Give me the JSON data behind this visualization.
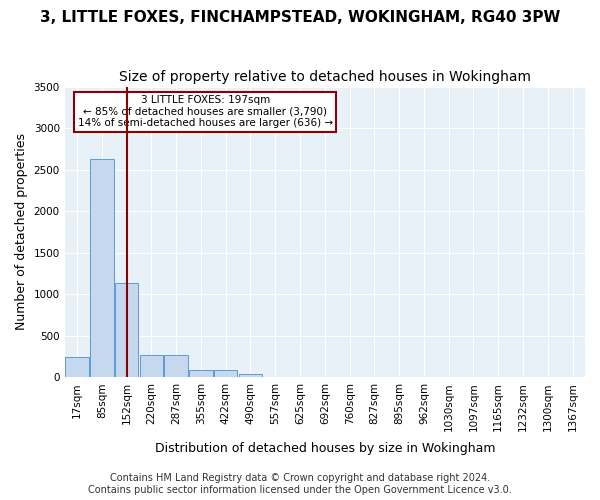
{
  "title": "3, LITTLE FOXES, FINCHAMPSTEAD, WOKINGHAM, RG40 3PW",
  "subtitle": "Size of property relative to detached houses in Wokingham",
  "xlabel": "Distribution of detached houses by size in Wokingham",
  "ylabel": "Number of detached properties",
  "footer_line1": "Contains HM Land Registry data © Crown copyright and database right 2024.",
  "footer_line2": "Contains public sector information licensed under the Open Government Licence v3.0.",
  "bin_labels": [
    "17sqm",
    "85sqm",
    "152sqm",
    "220sqm",
    "287sqm",
    "355sqm",
    "422sqm",
    "490sqm",
    "557sqm",
    "625sqm",
    "692sqm",
    "760sqm",
    "827sqm",
    "895sqm",
    "962sqm",
    "1030sqm",
    "1097sqm",
    "1165sqm",
    "1232sqm",
    "1300sqm",
    "1367sqm"
  ],
  "bar_heights": [
    250,
    2630,
    1140,
    265,
    265,
    90,
    90,
    45,
    0,
    0,
    0,
    0,
    0,
    0,
    0,
    0,
    0,
    0,
    0,
    0,
    0
  ],
  "bar_color": "#c5d8ed",
  "bar_edge_color": "#5b9bd5",
  "property_line_x": 2.0,
  "property_line_color": "#8b0000",
  "annotation_text_line1": "3 LITTLE FOXES: 197sqm",
  "annotation_text_line2": "← 85% of detached houses are smaller (3,790)",
  "annotation_text_line3": "14% of semi-detached houses are larger (636) →",
  "annotation_box_color": "#ffffff",
  "annotation_box_edge_color": "#8b0000",
  "ylim": [
    0,
    3500
  ],
  "yticks": [
    0,
    500,
    1000,
    1500,
    2000,
    2500,
    3000,
    3500
  ],
  "background_color": "#e8f0f8",
  "grid_color": "#ffffff",
  "title_fontsize": 11,
  "subtitle_fontsize": 10,
  "axis_label_fontsize": 9,
  "tick_fontsize": 7.5,
  "footer_fontsize": 7
}
